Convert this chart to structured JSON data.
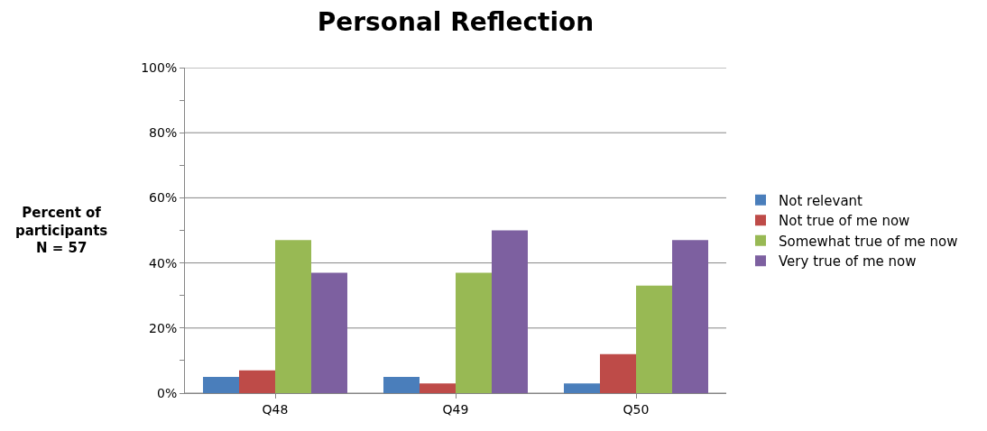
{
  "chart_data": {
    "type": "bar",
    "title": "Personal Reflection",
    "ylabel": "Percent of\nparticipants\nN = 57",
    "categories": [
      "Q48",
      "Q49",
      "Q50"
    ],
    "series": [
      {
        "name": "Not relevant",
        "color": "#4a7ebb",
        "values": [
          5,
          5,
          3
        ]
      },
      {
        "name": "Not true of me now",
        "color": "#be4b48",
        "values": [
          7,
          3,
          12
        ]
      },
      {
        "name": "Somewhat true of me now",
        "color": "#98b954",
        "values": [
          47,
          37,
          33
        ]
      },
      {
        "name": "Very true of me now",
        "color": "#7d60a0",
        "values": [
          37,
          50,
          47
        ]
      }
    ],
    "ylim": [
      0,
      100
    ],
    "yticks": [
      {
        "value": 0,
        "label": "0%"
      },
      {
        "value": 10,
        "label": null
      },
      {
        "value": 20,
        "label": "20%"
      },
      {
        "value": 30,
        "label": null
      },
      {
        "value": 40,
        "label": "40%"
      },
      {
        "value": 50,
        "label": null
      },
      {
        "value": 60,
        "label": "60%"
      },
      {
        "value": 70,
        "label": null
      },
      {
        "value": 80,
        "label": "80%"
      },
      {
        "value": 90,
        "label": null
      },
      {
        "value": 100,
        "label": "100%"
      }
    ],
    "grid": "y",
    "legend": "right"
  }
}
